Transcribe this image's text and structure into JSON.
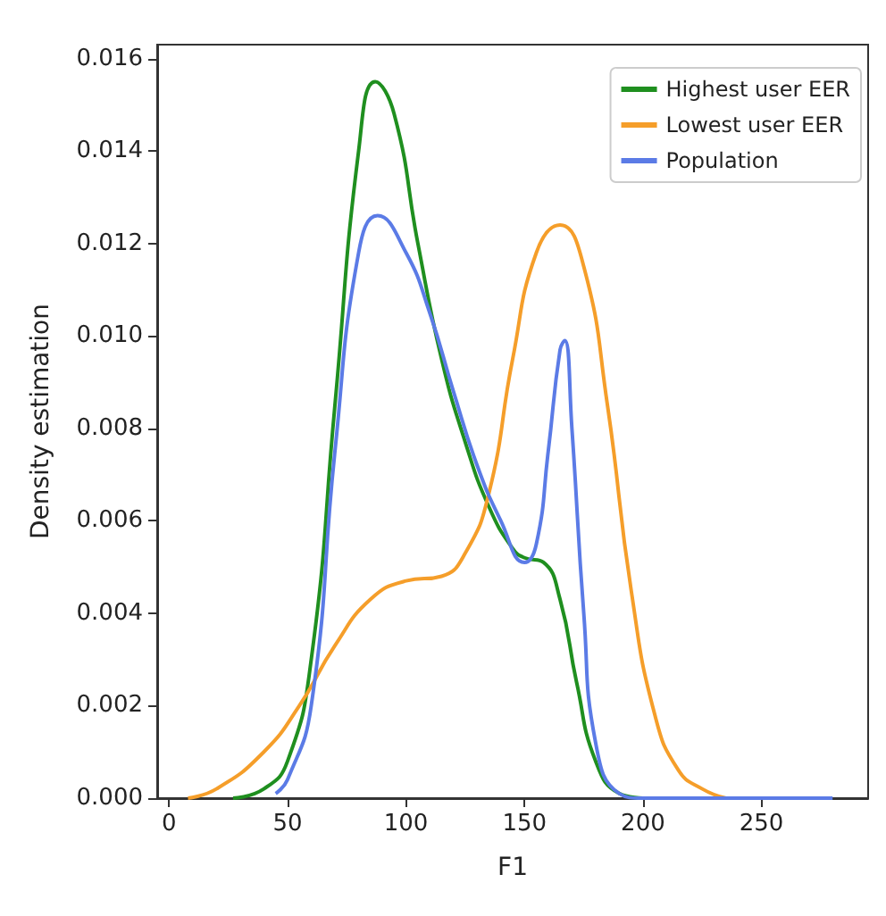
{
  "chart_data": {
    "type": "line",
    "xlabel": "F1",
    "ylabel": "Density estimation",
    "xlim": [
      -5,
      295
    ],
    "ylim": [
      0,
      0.0163
    ],
    "xticks": [
      0,
      50,
      100,
      150,
      200,
      250
    ],
    "yticks": [
      {
        "value": 0,
        "label": "0.000"
      },
      {
        "value": 0.002,
        "label": "0.002"
      },
      {
        "value": 0.004,
        "label": "0.004"
      },
      {
        "value": 0.006,
        "label": "0.006"
      },
      {
        "value": 0.008,
        "label": "0.008"
      },
      {
        "value": 0.01,
        "label": "0.010"
      },
      {
        "value": 0.012,
        "label": "0.012"
      },
      {
        "value": 0.014,
        "label": "0.014"
      },
      {
        "value": 0.016,
        "label": "0.016"
      }
    ],
    "grid": false,
    "legend": "top right",
    "marker": "none",
    "line_style": "solid",
    "series": [
      {
        "name": "Highest user EER",
        "color": "#1f8f1f",
        "x": [
          27,
          40,
          50,
          60,
          70,
          80,
          87,
          95,
          105,
          115,
          125,
          135,
          145,
          150,
          158,
          165,
          172,
          180,
          190,
          200
        ],
        "values": [
          0,
          0.0002,
          0.0008,
          0.003,
          0.0085,
          0.014,
          0.0155,
          0.0148,
          0.012,
          0.0095,
          0.0077,
          0.0063,
          0.0054,
          0.0052,
          0.0051,
          0.0043,
          0.0025,
          0.0008,
          0.0001,
          0
        ]
      },
      {
        "name": "Lowest user EER",
        "color": "#f59e2a",
        "x": [
          8,
          20,
          40,
          55,
          70,
          85,
          100,
          115,
          125,
          135,
          145,
          155,
          165,
          175,
          185,
          195,
          205,
          215,
          225,
          235
        ],
        "values": [
          0,
          0.0002,
          0.001,
          0.002,
          0.0033,
          0.0043,
          0.0047,
          0.0048,
          0.0053,
          0.0066,
          0.0095,
          0.0118,
          0.0124,
          0.0115,
          0.0085,
          0.0045,
          0.0018,
          0.0006,
          0.0002,
          0
        ]
      },
      {
        "name": "Population",
        "color": "#5b7be6",
        "x": [
          45,
          50,
          60,
          70,
          80,
          88,
          100,
          110,
          120,
          130,
          140,
          150,
          155,
          160,
          165,
          167,
          170,
          175,
          180,
          190,
          200,
          280
        ],
        "values": [
          0.0001,
          0.0004,
          0.002,
          0.0075,
          0.0118,
          0.0126,
          0.0118,
          0.0105,
          0.0088,
          0.0072,
          0.006,
          0.0051,
          0.0055,
          0.0075,
          0.0097,
          0.0099,
          0.008,
          0.004,
          0.0012,
          0.0001,
          0,
          0
        ]
      }
    ]
  }
}
